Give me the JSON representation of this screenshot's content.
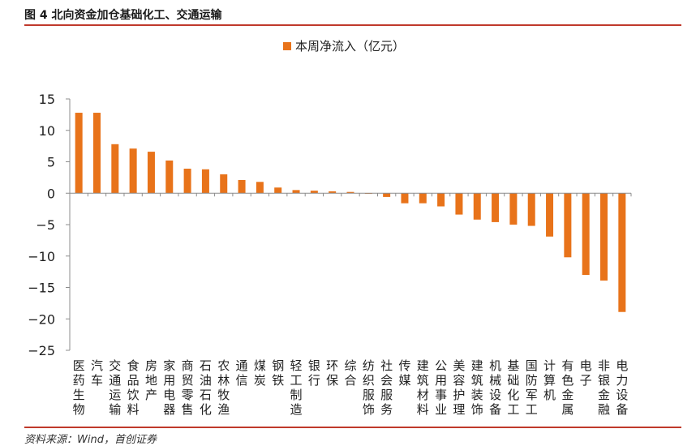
{
  "figure": {
    "title": "图 4 北向资金加仓基础化工、交通运输",
    "source": "资料来源：Wind，首创证券"
  },
  "colors": {
    "bar": "#E8731A",
    "rule": "#c0392b",
    "axis": "#8c8c8c"
  },
  "chart_data": {
    "type": "bar",
    "categories": [
      "医药生物",
      "汽车",
      "交通运输",
      "食品饮料",
      "房地产",
      "家用电器",
      "商贸零售",
      "石油石化",
      "农林牧渔",
      "通信",
      "煤炭",
      "钢铁",
      "轻工制造",
      "银行",
      "环保",
      "综合",
      "纺织服饰",
      "社会服务",
      "传媒",
      "建筑材料",
      "公用事业",
      "美容护理",
      "建筑装饰",
      "机械设备",
      "基础化工",
      "国防军工",
      "计算机",
      "有色金属",
      "电子",
      "非银金融",
      "电力设备"
    ],
    "series": [
      {
        "name": "本周净流入（亿元）",
        "values": [
          12.8,
          12.8,
          7.8,
          7.1,
          6.6,
          5.2,
          3.9,
          3.8,
          3.0,
          2.1,
          1.8,
          0.9,
          0.5,
          0.4,
          0.3,
          0.2,
          -0.1,
          -0.6,
          -1.6,
          -1.6,
          -2.1,
          -3.4,
          -4.2,
          -4.6,
          -5.0,
          -5.2,
          -6.9,
          -10.2,
          -13.0,
          -13.9,
          -18.9
        ]
      }
    ],
    "ylim": [
      -25,
      15
    ],
    "yticks": [
      15,
      10,
      5,
      0,
      -5,
      -10,
      -15,
      -20,
      -25
    ],
    "legend_position": "top-center",
    "grid": false
  }
}
